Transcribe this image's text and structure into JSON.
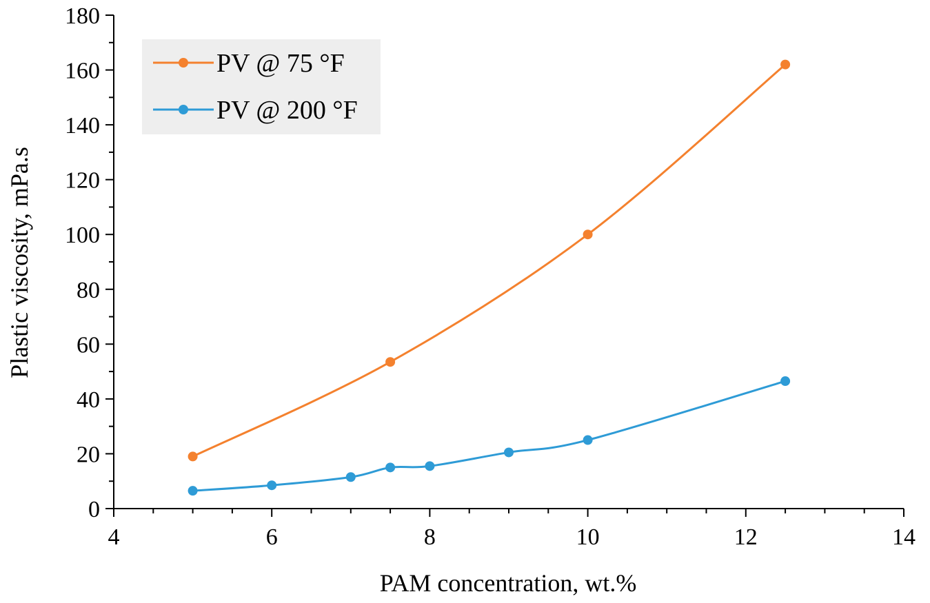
{
  "chart_data": {
    "type": "line",
    "title": "",
    "xlabel": "PAM concentration, wt.%",
    "ylabel": "Plastic viscosity, mPa.s",
    "xlim": [
      4,
      14
    ],
    "ylim": [
      0,
      180
    ],
    "x_ticks": [
      4,
      6,
      8,
      10,
      12,
      14
    ],
    "y_ticks": [
      0,
      20,
      40,
      60,
      80,
      100,
      120,
      140,
      160,
      180
    ],
    "x_tick_labels": [
      "4",
      "6",
      "8",
      "10",
      "12",
      "14"
    ],
    "y_tick_labels": [
      "0",
      "20",
      "40",
      "60",
      "80",
      "100",
      "120",
      "140",
      "160",
      "180"
    ],
    "grid": false,
    "smooth": true,
    "legend": {
      "placement": "top-left",
      "background": "#eeeeee"
    },
    "series": [
      {
        "name": "PV @ 75 °F",
        "color": "#f4812e",
        "x": [
          5,
          7.5,
          10,
          12.5
        ],
        "y": [
          19,
          53.5,
          100,
          162
        ]
      },
      {
        "name": "PV @ 200 °F",
        "color": "#2e9bd6",
        "x": [
          5,
          6,
          7,
          7.5,
          8,
          9,
          10,
          12.5
        ],
        "y": [
          6.5,
          8.5,
          11.5,
          15,
          15.5,
          20.5,
          25,
          46.5
        ]
      }
    ]
  }
}
